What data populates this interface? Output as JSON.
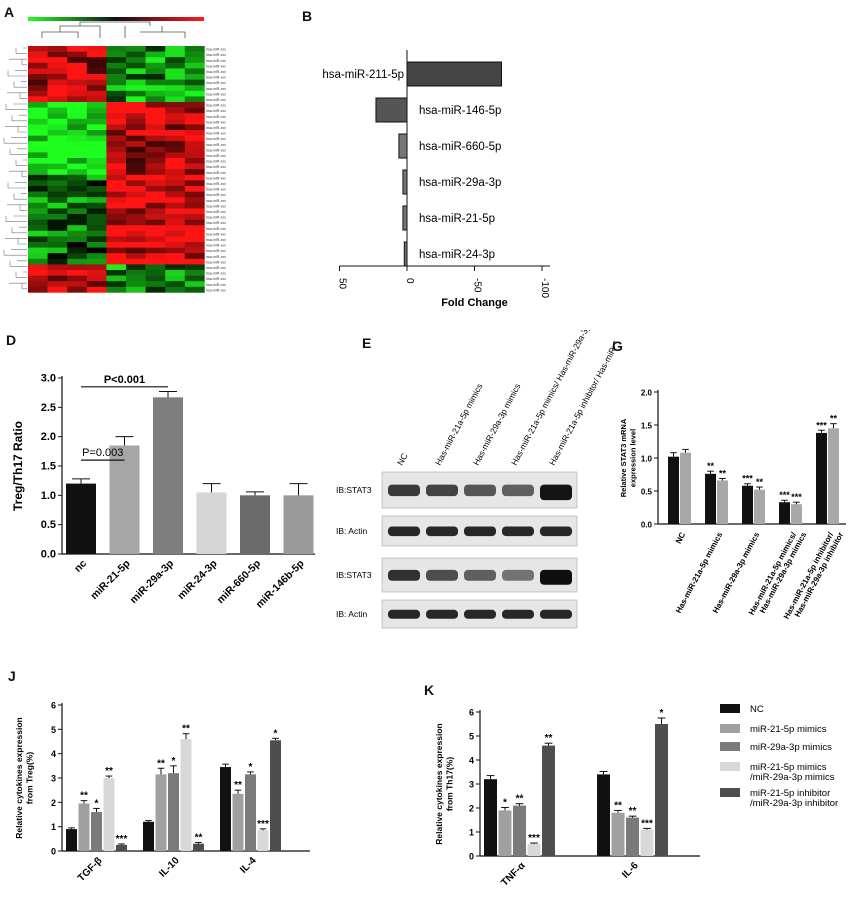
{
  "figure": {
    "panel_letters": [
      "A",
      "B",
      "D",
      "E",
      "G",
      "J",
      "K"
    ]
  },
  "colors": {
    "bar_black": "#111111",
    "bar_gray1": "#9a9a9a",
    "bar_gray2": "#6e6e6e",
    "bar_light": "#d4d4d4",
    "bar_dark": "#4a4a4a",
    "heat_red": "#ff1a1a",
    "heat_green": "#22ff22",
    "heat_black": "#111111"
  },
  "panelA": {
    "row_label_text": "hsa-miR-xxx",
    "row_label_count": 44
  },
  "panelE": {
    "lane_labels": [
      "NC",
      "Has-miR-21a-5p mimics",
      "Has-miR-29a-3p mimics",
      "Has-miR-21a-5p mimics/ Has-miR-29a-3p mimics",
      "Has-miR-21a-5p inhibitor/ Has-miR-29a-3p inhibitor"
    ],
    "blot_labels": [
      "IB:STAT3",
      "IB: Actin",
      "IB:STAT3",
      "IB: Actin"
    ]
  },
  "chart_data": [
    {
      "id": "B",
      "type": "bar",
      "orientation": "horizontal",
      "categories": [
        "hsa-miR-211-5p",
        "hsa-miR-146-5p",
        "hsa-miR-660-5p",
        "hsa-miR-29a-3p",
        "hsa-miR-21-5p",
        "hsa-miR-24-3p"
      ],
      "values": [
        -70,
        23,
        6,
        3,
        3,
        2
      ],
      "xlabel": "Fold Change",
      "xlim": [
        50,
        -150
      ],
      "xticks": [
        "50",
        "0",
        "-50",
        "-100",
        "-150"
      ],
      "tick_values": [
        50,
        0,
        -50,
        -100,
        -150
      ]
    },
    {
      "id": "D",
      "type": "bar",
      "categories": [
        "nc",
        "miR-21-5p",
        "miR-29a-3p",
        "miR-24-3p",
        "miR-660-5p",
        "miR-146b-5p"
      ],
      "values": [
        1.2,
        1.85,
        2.67,
        1.05,
        1.0,
        1.0
      ],
      "errors": [
        0.08,
        0.15,
        0.1,
        0.15,
        0.06,
        0.2
      ],
      "ylabel": "Treg/Th17 Ratio",
      "ylim": [
        0,
        3.0
      ],
      "yticks": [
        "0.0",
        "0.5",
        "1.0",
        "1.5",
        "2.0",
        "2.5",
        "3.0"
      ],
      "annotations": [
        {
          "text": "P=0.003",
          "from": 0,
          "to": 1
        },
        {
          "text": "P<0.001",
          "from": 0,
          "to": 2
        }
      ]
    },
    {
      "id": "G",
      "type": "bar",
      "categories": [
        "NC",
        "Has-miR-21a-5p mimics",
        "Has-miR-29a-3p mimics",
        "Has-miR-21a-5p mimics/ Has-miR-29a-3p mimics",
        "Has-miR-21a-5p inhibitor/ Has-miR-29a-3p inhibitor"
      ],
      "series": [
        {
          "values": [
            1.02,
            0.76,
            0.58,
            0.33,
            1.38
          ],
          "errors": [
            0.06,
            0.04,
            0.03,
            0.03,
            0.04
          ],
          "sig": [
            "",
            "**",
            "***",
            "***",
            "***"
          ]
        },
        {
          "values": [
            1.08,
            0.66,
            0.52,
            0.3,
            1.45
          ],
          "errors": [
            0.05,
            0.03,
            0.04,
            0.03,
            0.07
          ],
          "sig": [
            "",
            "**",
            "**",
            "***",
            "**"
          ]
        }
      ],
      "ylabel": "Relative STAT3 mRNA expression level",
      "ylim": [
        0,
        2.0
      ],
      "yticks": [
        "0.0",
        "0.5",
        "1.0",
        "1.5",
        "2.0"
      ]
    },
    {
      "id": "J",
      "type": "bar",
      "categories": [
        "TGF-β",
        "IL-10",
        "IL-4"
      ],
      "series": [
        {
          "values": [
            0.9,
            1.2,
            3.45
          ],
          "errors": [
            0.05,
            0.05,
            0.12
          ],
          "sig": [
            "",
            "",
            ""
          ]
        },
        {
          "values": [
            1.95,
            3.15,
            2.35
          ],
          "errors": [
            0.12,
            0.25,
            0.15
          ],
          "sig": [
            "**",
            "**",
            "**"
          ]
        },
        {
          "values": [
            1.6,
            3.2,
            3.15
          ],
          "errors": [
            0.15,
            0.3,
            0.1
          ],
          "sig": [
            "*",
            "*",
            "*"
          ]
        },
        {
          "values": [
            3.0,
            4.6,
            0.85
          ],
          "errors": [
            0.08,
            0.22,
            0.06
          ],
          "sig": [
            "**",
            "**",
            "***"
          ]
        },
        {
          "values": [
            0.25,
            0.3,
            4.55
          ],
          "errors": [
            0.04,
            0.05,
            0.08
          ],
          "sig": [
            "***",
            "**",
            "*"
          ]
        }
      ],
      "ylabel": "Relative cytokines expression from Treg(%)",
      "ylim": [
        0,
        6
      ],
      "yticks": [
        "0",
        "1",
        "2",
        "3",
        "4",
        "5",
        "6"
      ]
    },
    {
      "id": "K",
      "type": "bar",
      "categories": [
        "TNF-α",
        "IL-6"
      ],
      "series": [
        {
          "name": "NC",
          "values": [
            3.2,
            3.4
          ],
          "errors": [
            0.15,
            0.12
          ],
          "sig": [
            "",
            ""
          ]
        },
        {
          "name": "miR-21-5p mimics",
          "values": [
            1.9,
            1.8
          ],
          "errors": [
            0.12,
            0.1
          ],
          "sig": [
            "*",
            "**"
          ]
        },
        {
          "name": "miR-29a-3p mimics",
          "values": [
            2.1,
            1.6
          ],
          "errors": [
            0.08,
            0.06
          ],
          "sig": [
            "**",
            "**"
          ]
        },
        {
          "name": "miR-21-5p mimics /miR-29a-3p mimics",
          "values": [
            0.5,
            1.1
          ],
          "errors": [
            0.04,
            0.05
          ],
          "sig": [
            "***",
            "***"
          ]
        },
        {
          "name": "miR-21-5p inhibitor /miR-29a-3p inhibitor",
          "values": [
            4.6,
            5.5
          ],
          "errors": [
            0.1,
            0.25
          ],
          "sig": [
            "**",
            "*"
          ]
        }
      ],
      "ylabel": "Relative cytokines expression from Th17(%)",
      "ylim": [
        0,
        6
      ],
      "yticks": [
        "0",
        "1",
        "2",
        "3",
        "4",
        "5",
        "6"
      ]
    }
  ]
}
